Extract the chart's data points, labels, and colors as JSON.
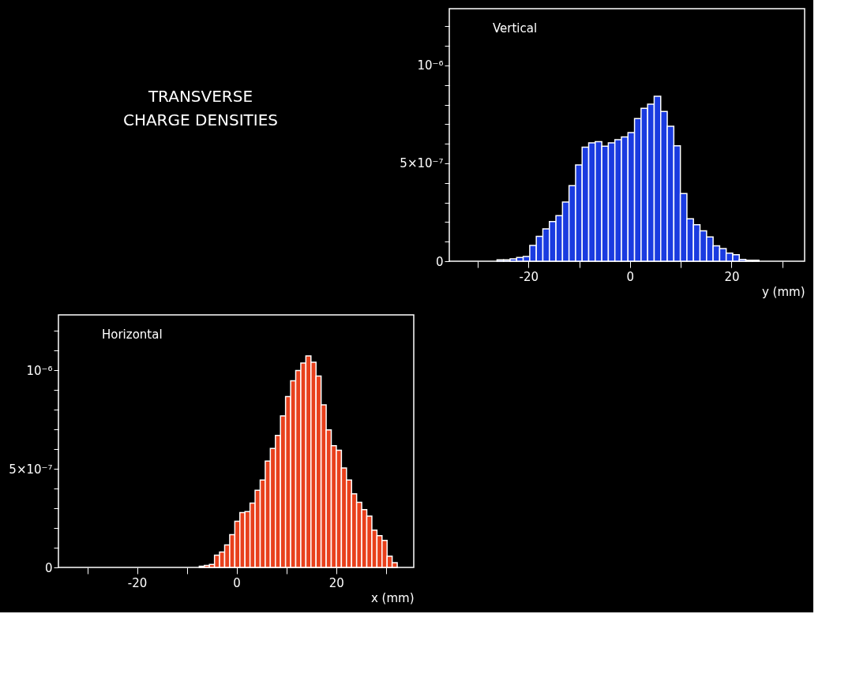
{
  "chart_data": [
    {
      "type": "other",
      "title": "TRANSVERSE\nCHARGE DENSITIES"
    },
    {
      "type": "histogram",
      "title": "Vertical",
      "xlabel": "y (mm)",
      "color": "#1a3be0",
      "bins": [
        -26.2,
        -24.91,
        -23.62,
        -22.33,
        -21.04,
        -19.75,
        -18.46,
        -17.17,
        -15.88,
        -14.59,
        -13.3,
        -12.01,
        -10.72,
        -9.43,
        -8.14,
        -6.85,
        -5.56,
        -4.27,
        -2.98,
        -1.69,
        -0.4,
        0.89,
        2.18,
        3.47,
        4.76,
        6.05,
        7.34,
        8.63,
        9.92,
        11.21,
        12.5,
        13.79,
        15.08,
        16.37,
        17.66,
        18.95,
        20.24,
        21.53,
        22.82,
        24.11,
        25.4
      ],
      "values": [
        7e-09,
        7e-09,
        1.2e-08,
        1.9e-08,
        2.4e-08,
        8.1e-08,
        1.27e-07,
        1.65e-07,
        2.03e-07,
        2.33e-07,
        3.02e-07,
        3.86e-07,
        4.92e-07,
        5.83e-07,
        6.05e-07,
        6.11e-07,
        5.88e-07,
        6.05e-07,
        6.21e-07,
        6.35e-07,
        6.57e-07,
        7.29e-07,
        7.81e-07,
        8.02e-07,
        8.43e-07,
        7.65e-07,
        6.89e-07,
        5.9e-07,
        3.46e-07,
        2.17e-07,
        1.86e-07,
        1.55e-07,
        1.24e-07,
        7.9e-08,
        6.4e-08,
        4.1e-08,
        3.3e-08,
        9e-09,
        5e-09,
        5e-09
      ],
      "xlim": [
        -35.6,
        34.4
      ],
      "ylim": [
        0,
        1.29e-06
      ],
      "xticks": [
        {
          "value": -30,
          "label": null
        },
        -20,
        {
          "value": -10,
          "label": null
        },
        0,
        {
          "value": 10,
          "label": null
        },
        20,
        {
          "value": 30,
          "label": null
        }
      ],
      "yticks": [
        0,
        {
          "value": 1e-07,
          "label": null
        },
        {
          "value": 2e-07,
          "label": null
        },
        {
          "value": 3e-07,
          "label": null
        },
        {
          "value": 4e-07,
          "label": null
        },
        {
          "value": 5e-07,
          "label": "5×10⁻⁷"
        },
        {
          "value": 6e-07,
          "label": null
        },
        {
          "value": 7e-07,
          "label": null
        },
        {
          "value": 8e-07,
          "label": null
        },
        {
          "value": 9e-07,
          "label": null
        },
        {
          "value": 1e-06,
          "label": "10⁻⁶"
        },
        {
          "value": 1.1e-06,
          "label": null
        },
        {
          "value": 1.2e-06,
          "label": null
        }
      ]
    },
    {
      "type": "histogram",
      "title": "Horizontal",
      "xlabel": "x (mm)",
      "color": "#e8401c",
      "bins": [
        -7.5,
        -6.48,
        -5.46,
        -4.44,
        -3.42,
        -2.4,
        -1.38,
        -0.36,
        0.66,
        1.68,
        2.7,
        3.72,
        4.74,
        5.76,
        6.78,
        7.8,
        8.82,
        9.84,
        10.86,
        11.88,
        12.9,
        13.92,
        14.94,
        15.96,
        16.98,
        18.0,
        19.02,
        20.04,
        21.06,
        22.08,
        23.1,
        24.12,
        25.14,
        26.16,
        27.18,
        28.2,
        29.22,
        30.24,
        31.26,
        32.28
      ],
      "values": [
        6e-09,
        1e-08,
        1.5e-08,
        6.2e-08,
        7.8e-08,
        1.14e-07,
        1.66e-07,
        2.34e-07,
        2.78e-07,
        2.83e-07,
        3.26e-07,
        3.91e-07,
        4.43e-07,
        5.39e-07,
        6.03e-07,
        6.69e-07,
        7.68e-07,
        8.66e-07,
        9.46e-07,
        9.98e-07,
        1.036e-06,
        1.072e-06,
        1.04e-06,
        9.7e-07,
        8.24e-07,
        6.97e-07,
        6.17e-07,
        5.94e-07,
        5.04e-07,
        4.43e-07,
        3.73e-07,
        3.3e-07,
        2.93e-07,
        2.6e-07,
        1.89e-07,
        1.61e-07,
        1.37e-07,
        5.7e-08,
        2.4e-08
      ],
      "xlim": [
        -35.8,
        35.6
      ],
      "ylim": [
        0,
        1.28e-06
      ],
      "xticks": [
        {
          "value": -30,
          "label": null
        },
        -20,
        {
          "value": -10,
          "label": null
        },
        0,
        {
          "value": 10,
          "label": null
        },
        20,
        {
          "value": 30,
          "label": null
        }
      ],
      "yticks": [
        0,
        {
          "value": 1e-07,
          "label": null
        },
        {
          "value": 2e-07,
          "label": null
        },
        {
          "value": 3e-07,
          "label": null
        },
        {
          "value": 4e-07,
          "label": null
        },
        {
          "value": 5e-07,
          "label": "5×10⁻⁷"
        },
        {
          "value": 6e-07,
          "label": null
        },
        {
          "value": 7e-07,
          "label": null
        },
        {
          "value": 8e-07,
          "label": null
        },
        {
          "value": 9e-07,
          "label": null
        },
        {
          "value": 1e-06,
          "label": "10⁻⁶"
        },
        {
          "value": 1.1e-06,
          "label": null
        },
        {
          "value": 1.2e-06,
          "label": null
        }
      ]
    }
  ]
}
